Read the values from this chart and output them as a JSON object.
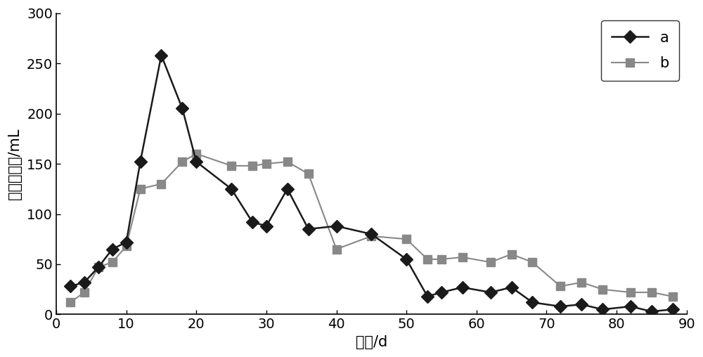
{
  "series_a_x": [
    2,
    4,
    6,
    8,
    10,
    12,
    15,
    18,
    20,
    25,
    28,
    30,
    33,
    36,
    40,
    45,
    50,
    53,
    55,
    58,
    62,
    65,
    68,
    72,
    75,
    78,
    82,
    85,
    88
  ],
  "series_a_y": [
    28,
    32,
    47,
    65,
    72,
    152,
    258,
    205,
    152,
    125,
    92,
    88,
    125,
    85,
    88,
    80,
    55,
    18,
    22,
    27,
    22,
    27,
    12,
    8,
    10,
    5,
    8,
    3,
    5
  ],
  "series_b_x": [
    2,
    4,
    6,
    8,
    10,
    12,
    15,
    18,
    20,
    25,
    28,
    30,
    33,
    36,
    40,
    45,
    50,
    53,
    55,
    58,
    62,
    65,
    68,
    72,
    75,
    78,
    82,
    85,
    88
  ],
  "series_b_y": [
    12,
    22,
    47,
    52,
    68,
    125,
    130,
    152,
    160,
    148,
    148,
    150,
    152,
    140,
    65,
    78,
    75,
    55,
    55,
    57,
    52,
    60,
    52,
    28,
    32,
    25,
    22,
    22,
    18
  ],
  "color_a": "#1a1a1a",
  "color_b": "#888888",
  "xlabel": "时间/d",
  "ylabel": "甲烷产气量/mL",
  "xlim": [
    0,
    90
  ],
  "ylim": [
    0,
    300
  ],
  "xticks": [
    0,
    10,
    20,
    30,
    40,
    50,
    60,
    70,
    80,
    90
  ],
  "yticks": [
    0,
    50,
    100,
    150,
    200,
    250,
    300
  ],
  "legend_a": "a",
  "legend_b": "b",
  "background_color": "#ffffff",
  "label_fontsize": 15,
  "tick_fontsize": 14,
  "legend_fontsize": 15,
  "linewidth_a": 1.8,
  "linewidth_b": 1.5,
  "markersize_a": 9,
  "markersize_b": 9
}
